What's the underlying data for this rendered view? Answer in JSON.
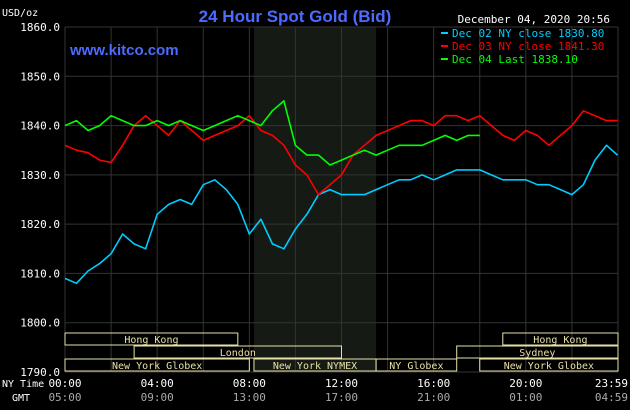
{
  "title": "24 Hour Spot Gold (Bid)",
  "subtitle_unit": "USD/oz",
  "website": "www.kitco.com",
  "timestamp": "December 04, 2020 20:56",
  "colors": {
    "background": "#000000",
    "grid": "#333333",
    "title": "#4d6bff",
    "website": "#4d6bff",
    "axis_text": "#ffffff",
    "session_box": "#e7e0a8",
    "session_text": "#000000",
    "highlight_band": "#151a15",
    "blue_series": "#00ccff",
    "red_series": "#ff0000",
    "green_series": "#00ff00"
  },
  "axes": {
    "ny_time_label": "NY Time",
    "gmt_label": "GMT",
    "ny_ticks": [
      "00:00",
      "04:00",
      "08:00",
      "12:00",
      "16:00",
      "20:00",
      "23:59"
    ],
    "gmt_ticks": [
      "05:00",
      "09:00",
      "13:00",
      "17:00",
      "21:00",
      "01:00",
      "04:59"
    ]
  },
  "sessions": {
    "row1": [
      {
        "label": "Hong Kong",
        "start": -1,
        "end": 7.5
      },
      {
        "label": "Hong Kong",
        "start": 19,
        "end": 24
      }
    ],
    "row2": [
      {
        "label": "London",
        "start": 3,
        "end": 12
      },
      {
        "label": "Sydney",
        "start": 17,
        "end": 24
      }
    ],
    "row3": [
      {
        "label": "New York Globex",
        "start": -1,
        "end": 8
      },
      {
        "label": "New York NYMEX",
        "start": 8.2,
        "end": 13.5
      },
      {
        "label": "NY Globex",
        "start": 13.5,
        "end": 17
      },
      {
        "label": "New York Globex",
        "start": 18,
        "end": 24
      }
    ]
  },
  "chart_data": {
    "type": "line",
    "title": "24 Hour Spot Gold (Bid)",
    "ylabel": "USD/oz",
    "xlabel": "NY Time",
    "xlim": [
      0,
      24
    ],
    "ylim": [
      1790,
      1860
    ],
    "y_ticks": [
      "1860.0",
      "1850.0",
      "1840.0",
      "1830.0",
      "1820.0",
      "1810.0",
      "1800.0",
      "1790.0"
    ],
    "highlight_x": [
      8.2,
      13.5
    ],
    "grid": true,
    "legend_position": "top-right",
    "series": [
      {
        "name": "Dec 02 NY close 1830.80",
        "color": "#00ccff",
        "x": [
          0,
          0.5,
          1,
          1.5,
          2,
          2.5,
          3,
          3.5,
          4,
          4.5,
          5,
          5.5,
          6,
          6.5,
          7,
          7.5,
          8,
          8.5,
          9,
          9.5,
          10,
          10.5,
          11,
          11.5,
          12,
          12.5,
          13,
          13.5,
          14,
          14.5,
          15,
          15.5,
          16,
          16.5,
          17,
          17.5,
          18,
          18.5,
          19,
          19.5,
          20,
          20.5,
          21,
          21.5,
          22,
          22.5,
          23,
          23.5,
          23.98
        ],
        "y": [
          1809,
          1808,
          1810.5,
          1812,
          1814,
          1818,
          1816,
          1815,
          1822,
          1824,
          1825,
          1824,
          1828,
          1829,
          1827,
          1824,
          1818,
          1821,
          1816,
          1815,
          1819,
          1822,
          1826,
          1827,
          1826,
          1826,
          1826,
          1827,
          1828,
          1829,
          1829,
          1830,
          1829,
          1830,
          1831,
          1831,
          1831,
          1830,
          1829,
          1829,
          1829,
          1828,
          1828,
          1827,
          1826,
          1828,
          1833,
          1836,
          1834
        ]
      },
      {
        "name": "Dec 03 NY close 1841.30",
        "color": "#ff0000",
        "x": [
          0,
          0.5,
          1,
          1.5,
          2,
          2.5,
          3,
          3.5,
          4,
          4.5,
          5,
          5.5,
          6,
          6.5,
          7,
          7.5,
          8,
          8.5,
          9,
          9.5,
          10,
          10.5,
          11,
          11.5,
          12,
          12.5,
          13,
          13.5,
          14,
          14.5,
          15,
          15.5,
          16,
          16.5,
          17,
          17.5,
          18,
          18.5,
          19,
          19.5,
          20,
          20.5,
          21,
          21.5,
          22,
          22.5,
          23,
          23.5,
          23.98
        ],
        "y": [
          1836,
          1835,
          1834.5,
          1833,
          1832.5,
          1836,
          1840,
          1842,
          1840,
          1838,
          1841,
          1839,
          1837,
          1838,
          1839,
          1840,
          1842,
          1839,
          1838,
          1836,
          1832,
          1830,
          1826,
          1828,
          1830,
          1834,
          1836,
          1838,
          1839,
          1840,
          1841,
          1841,
          1840,
          1842,
          1842,
          1841,
          1842,
          1840,
          1838,
          1837,
          1839,
          1838,
          1836,
          1838,
          1840,
          1843,
          1842,
          1841,
          1841
        ]
      },
      {
        "name": "Dec 04 Last 1838.10",
        "color": "#00ff00",
        "x": [
          0,
          0.5,
          1,
          1.5,
          2,
          2.5,
          3,
          3.5,
          4,
          4.5,
          5,
          5.5,
          6,
          6.5,
          7,
          7.5,
          8,
          8.5,
          9,
          9.5,
          10,
          10.5,
          11,
          11.5,
          12,
          12.5,
          13,
          13.5,
          14,
          14.5,
          15,
          15.5,
          16,
          16.5,
          17,
          17.5,
          18
        ],
        "y": [
          1840,
          1841,
          1839,
          1840,
          1842,
          1841,
          1840,
          1840,
          1841,
          1840,
          1841,
          1840,
          1839,
          1840,
          1841,
          1842,
          1841,
          1840,
          1843,
          1845,
          1836,
          1834,
          1834,
          1832,
          1833,
          1834,
          1835,
          1834,
          1835,
          1836,
          1836,
          1836,
          1837,
          1838,
          1837,
          1838,
          1838
        ]
      }
    ]
  }
}
